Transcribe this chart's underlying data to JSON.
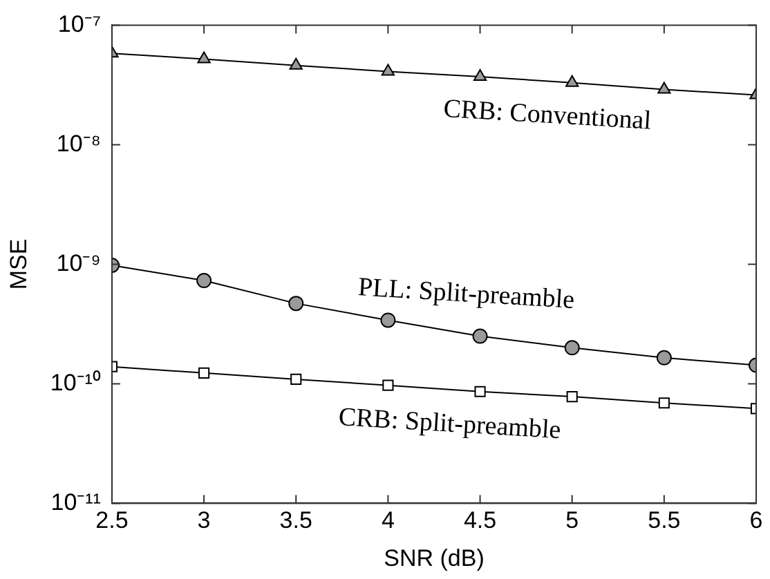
{
  "chart_data": {
    "type": "line",
    "xlabel": "SNR (dB)",
    "ylabel": "MSE",
    "x": [
      2.5,
      3,
      3.5,
      4,
      4.5,
      5,
      5.5,
      6
    ],
    "series": [
      {
        "name": "CRB: Conventional",
        "color": "#9a9a9a",
        "marker": "triangle",
        "values": [
          5.8e-08,
          5.2e-08,
          4.6e-08,
          4.1e-08,
          3.7e-08,
          3.3e-08,
          2.9e-08,
          2.6e-08
        ]
      },
      {
        "name": "PLL: Split-preamble",
        "color": "#9a9a9a",
        "marker": "circle",
        "values": [
          9.8e-10,
          7.3e-10,
          4.7e-10,
          3.4e-10,
          2.5e-10,
          2e-10,
          1.65e-10,
          1.43e-10
        ]
      },
      {
        "name": "CRB: Split-preamble",
        "color": "#ffffff",
        "marker": "square",
        "values": [
          1.39e-10,
          1.23e-10,
          1.09e-10,
          9.7e-11,
          8.6e-11,
          7.8e-11,
          6.9e-11,
          6.2e-11
        ]
      }
    ],
    "log": "y",
    "grid": false,
    "legend": false,
    "line_style": "solid",
    "xlim": [
      2.5,
      6
    ],
    "xticks": [
      2.5,
      3,
      3.5,
      4,
      4.5,
      5,
      5.5,
      6
    ],
    "ylim": [
      1e-11,
      1e-07
    ],
    "yticks": [
      {
        "value": 1e-11,
        "label": "10⁻¹¹"
      },
      {
        "value": 1e-10,
        "label": "10⁻¹⁰"
      },
      {
        "value": 1e-09,
        "label": "10⁻⁹"
      },
      {
        "value": 1e-08,
        "label": "10⁻⁸"
      },
      {
        "value": 1e-07,
        "label": "10⁻⁷"
      }
    ]
  }
}
